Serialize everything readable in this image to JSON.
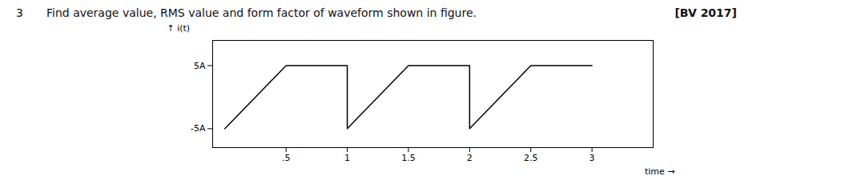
{
  "chart_data": {
    "type": "line",
    "title": "Find average value, RMS value and form factor of waveform shown in figure.",
    "annotations": [
      "3",
      "[BV 2017]"
    ],
    "x": [
      0,
      0.5,
      1.0,
      1.0,
      1.5,
      2.0,
      2.0,
      2.5,
      3.0
    ],
    "values": [
      -5,
      5,
      5,
      -5,
      5,
      5,
      -5,
      5,
      5
    ],
    "color": "#000000",
    "x_label": "time",
    "y_label": "i(t)",
    "xlim": [
      -0.1,
      3.5
    ],
    "ylim": [
      -8.0,
      9.0
    ],
    "xticks": [
      {
        "value": 0.5,
        "label": ".5"
      },
      1,
      {
        "value": 1.5,
        "label": "1.5"
      },
      2,
      {
        "value": 2.5,
        "label": "2.5"
      },
      3
    ],
    "yticks": [
      {
        "value": 5,
        "label": "5A"
      },
      {
        "value": -5,
        "label": "-5A"
      }
    ],
    "grid": false
  }
}
